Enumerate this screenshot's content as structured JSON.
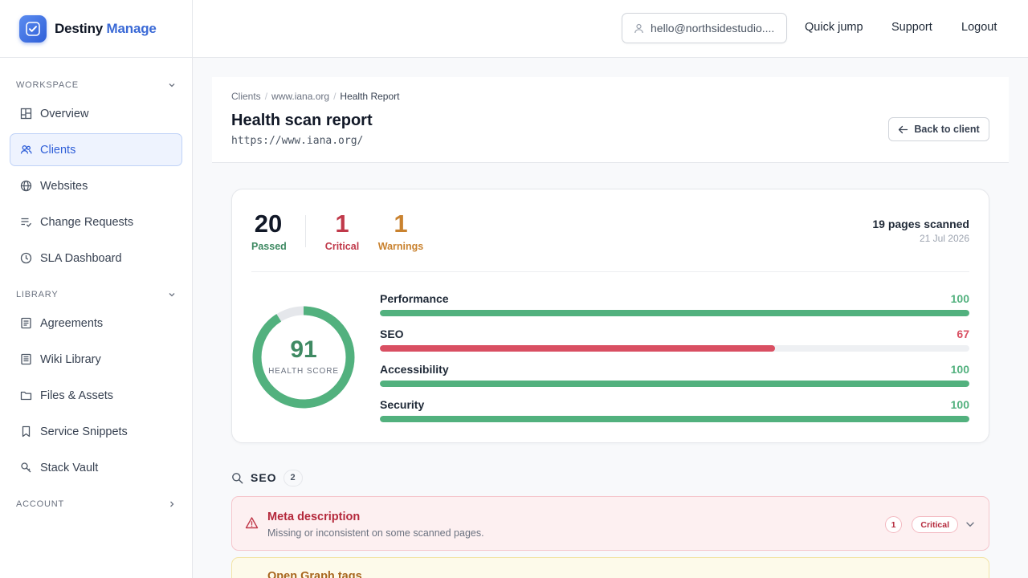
{
  "brand": {
    "name": "Destiny",
    "accent": "Manage",
    "icon": "check-badge-icon",
    "accent_color": "#3b6ad6"
  },
  "sidebar": {
    "workspace": {
      "label": "WORKSPACE",
      "items": [
        {
          "label": "Overview",
          "icon": "layout-icon"
        },
        {
          "label": "Clients",
          "icon": "users-icon",
          "active": true
        },
        {
          "label": "Websites",
          "icon": "globe-icon"
        },
        {
          "label": "Change Requests",
          "icon": "list-check-icon"
        },
        {
          "label": "SLA Dashboard",
          "icon": "clock-icon"
        }
      ]
    },
    "library": {
      "label": "LIBRARY",
      "items": [
        {
          "label": "Agreements",
          "icon": "file-text-icon"
        },
        {
          "label": "Wiki Library",
          "icon": "book-icon"
        },
        {
          "label": "Files & Assets",
          "icon": "folder-icon"
        },
        {
          "label": "Service Snippets",
          "icon": "bookmark-icon"
        },
        {
          "label": "Stack Vault",
          "icon": "key-icon"
        }
      ]
    },
    "account": {
      "label": "ACCOUNT"
    }
  },
  "topbar": {
    "user_email": "hello@northsidestudio....",
    "quick_jump": "Quick jump",
    "support": "Support",
    "logout": "Logout"
  },
  "header": {
    "breadcrumbs": [
      "Clients",
      "www.iana.org",
      "Health Report"
    ],
    "title": "Health scan report",
    "url": "https://www.iana.org/",
    "back_label": "Back to client"
  },
  "summary": {
    "passed": {
      "value": "20",
      "label": "Passed",
      "color": "#3f8a63"
    },
    "critical": {
      "value": "1",
      "label": "Critical",
      "color": "#c0394a"
    },
    "warnings": {
      "value": "1",
      "label": "Warnings",
      "color": "#c9822f"
    },
    "pages_scanned": "19 pages scanned",
    "scan_date": "21 Jul 2026",
    "health_score": {
      "value": 91,
      "display": "91",
      "label": "HEALTH SCORE"
    },
    "metrics": [
      {
        "name": "Performance",
        "value": 100,
        "display": "100",
        "color": "#52b17e"
      },
      {
        "name": "SEO",
        "value": 67,
        "display": "67",
        "color": "#d94f62"
      },
      {
        "name": "Accessibility",
        "value": 100,
        "display": "100",
        "color": "#52b17e"
      },
      {
        "name": "Security",
        "value": 100,
        "display": "100",
        "color": "#52b17e"
      }
    ]
  },
  "issues": {
    "section_title": "SEO",
    "section_count": "2",
    "items": [
      {
        "title": "Meta description",
        "desc": "Missing or inconsistent on some scanned pages.",
        "count": "1",
        "badge": "Critical"
      },
      {
        "title": "Open Graph tags"
      }
    ]
  }
}
